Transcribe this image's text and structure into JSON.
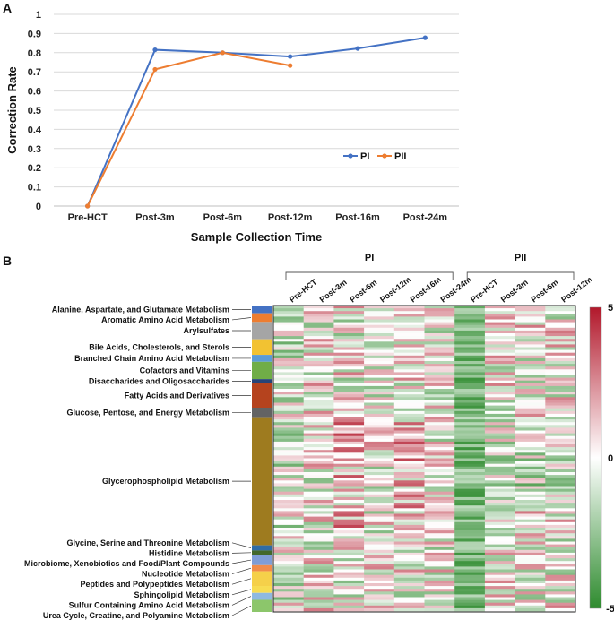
{
  "panels": {
    "a": "A",
    "b": "B"
  },
  "chart_data": [
    {
      "type": "line",
      "xlabel": "Sample Collection Time",
      "ylabel": "Correction Rate",
      "ylim": [
        0,
        1
      ],
      "yticks": [
        "0",
        "0.1",
        "0.2",
        "0.3",
        "0.4",
        "0.5",
        "0.6",
        "0.7",
        "0.8",
        "0.9",
        "1"
      ],
      "categories": [
        "Pre-HCT",
        "Post-3m",
        "Post-6m",
        "Post-12m",
        "Post-16m",
        "Post-24m"
      ],
      "grid": "horizontal",
      "legend_position": "right",
      "series": [
        {
          "name": "PI",
          "color": "#4472c4",
          "values": [
            0,
            0.815,
            0.8,
            0.78,
            0.822,
            0.878
          ]
        },
        {
          "name": "PII",
          "color": "#ed7d31",
          "values": [
            0,
            0.713,
            0.8,
            0.733,
            null,
            null
          ]
        }
      ]
    },
    {
      "type": "heatmap",
      "groups": [
        {
          "name": "PI",
          "columns": [
            "Pre-HCT",
            "Post-3m",
            "Post-6m",
            "Post-12m",
            "Post-16m",
            "Post-24m"
          ]
        },
        {
          "name": "PII",
          "columns": [
            "Pre-HCT",
            "Post-3m",
            "Post-6m",
            "Post-12m"
          ]
        }
      ],
      "colorbar": {
        "min": -5,
        "max": 5,
        "mid": 0,
        "ticks": [
          "5",
          "0",
          "-5"
        ],
        "colors": [
          "#2e8b2e",
          "#ffffff",
          "#b2182b"
        ]
      },
      "categories": [
        {
          "name": "Alanine, Aspartate, and Glutamate Metabolism",
          "color": "#4472c4",
          "weight": 9
        },
        {
          "name": "Aromatic Amino Acid Metabolism",
          "color": "#ed7d31",
          "weight": 10
        },
        {
          "name": "Arylsulfates",
          "color": "#a5a5a5",
          "weight": 20
        },
        {
          "name": "Bile Acids, Cholesterols, and Sterols",
          "color": "#f2c232",
          "weight": 18
        },
        {
          "name": "Branched Chain Amino Acid Metabolism",
          "color": "#5b9bd5",
          "weight": 8
        },
        {
          "name": "Cofactors and Vitamins",
          "color": "#70ad47",
          "weight": 20
        },
        {
          "name": "Disaccharides and Oligosaccharides",
          "color": "#264478",
          "weight": 5
        },
        {
          "name": "Fatty Acids and Derivatives",
          "color": "#b5431e",
          "weight": 28
        },
        {
          "name": "Glucose, Pentose, and Energy Metabolism",
          "color": "#636363",
          "weight": 11
        },
        {
          "name": "Glycerophospholipid Metabolism",
          "color": "#9e7b1f",
          "weight": 148
        },
        {
          "name": "Glycine, Serine and Threonine Metabolism",
          "color": "#2f6ca6",
          "weight": 6
        },
        {
          "name": "Histidine Metabolism",
          "color": "#43682b",
          "weight": 5
        },
        {
          "name": "Microbiome, Xenobiotics and Food/Plant Compounds",
          "color": "#7f9dd6",
          "weight": 12
        },
        {
          "name": "Nucleotide Metabolism",
          "color": "#f08c4b",
          "weight": 7
        },
        {
          "name": "Peptides and Polypeptides Metabolism",
          "color": "#f5d04a",
          "weight": 17
        },
        {
          "name": "Sphingolipid Metabolism",
          "color": "#f7dc52",
          "weight": 8
        },
        {
          "name": "Sulfur Containing Amino Acid Metabolism",
          "color": "#8fb9e0",
          "weight": 8
        },
        {
          "name": "Urea Cycle, Creatine, and Polyamine Metabolism",
          "color": "#8cc66b",
          "weight": 14
        }
      ]
    }
  ]
}
